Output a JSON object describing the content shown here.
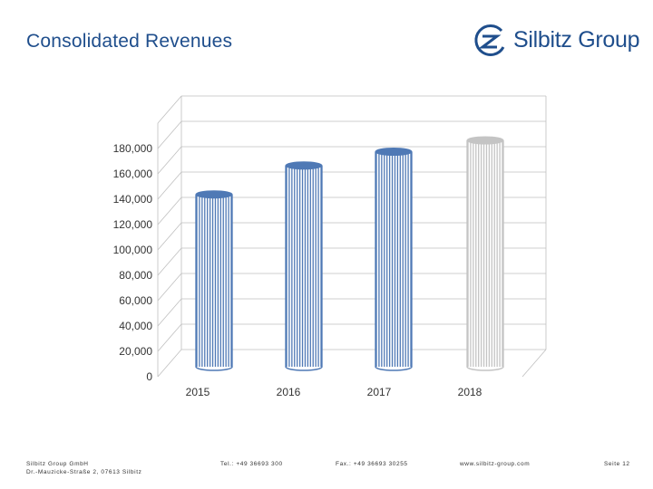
{
  "header": {
    "title": "Consolidated Revenues"
  },
  "logo": {
    "company_name": "Silbitz Group"
  },
  "chart_data": {
    "type": "bar",
    "categories": [
      "2015",
      "2016",
      "2017",
      "2018"
    ],
    "values": [
      137000,
      160000,
      171000,
      180000
    ],
    "series_colors": [
      "#4f79b5",
      "#4f79b5",
      "#4f79b5",
      "#c4c4c4"
    ],
    "title": "",
    "xlabel": "",
    "ylabel": "",
    "ylim": [
      0,
      200000
    ],
    "yticks": [
      0,
      20000,
      40000,
      60000,
      80000,
      100000,
      120000,
      140000,
      160000,
      180000
    ],
    "ytick_labels": [
      "0",
      "20,000",
      "40,000",
      "60,000",
      "80,000",
      "100,000",
      "120,000",
      "140,000",
      "160,000",
      "180,000"
    ],
    "grid": true,
    "legend": "none"
  },
  "footer": {
    "company": "Silbitz Group GmbH",
    "address": "Dr.-Mauzicke-Straße 2, 07613 Silbitz",
    "phone": "Tel.: +49 36693 300",
    "fax": "Fax.: +49 36693 30255",
    "web": "www.silbitz-group.com",
    "page": "Seite 12"
  },
  "colors": {
    "brand_blue": "#1f4e8c",
    "grid": "#bfbfbf"
  }
}
